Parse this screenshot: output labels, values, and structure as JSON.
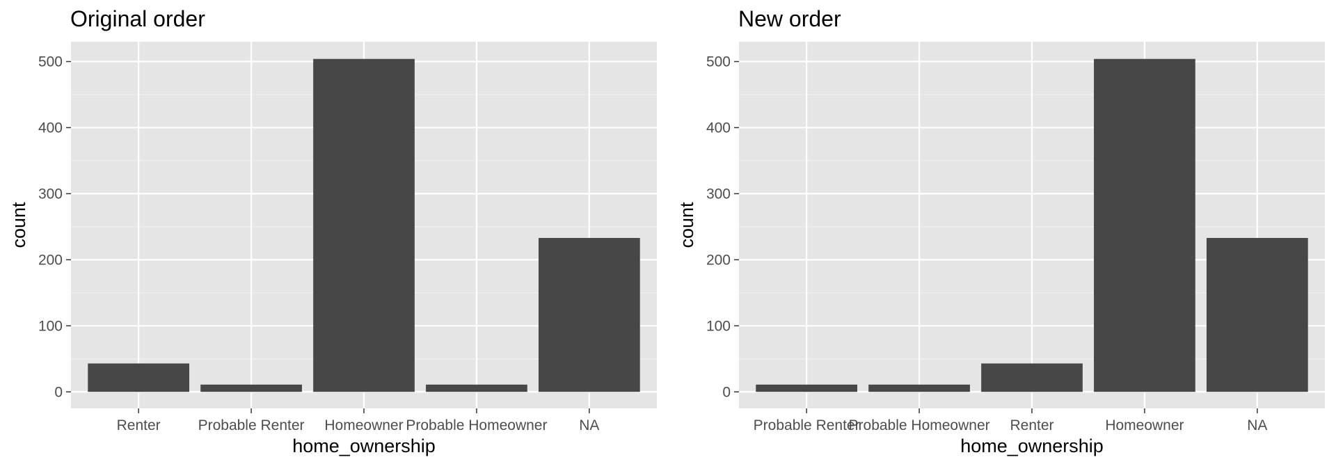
{
  "colors": {
    "panel_bg": "#e5e5e5",
    "grid_major": "#ffffff",
    "grid_minor": "#f0f0f0",
    "bar_fill": "#474747",
    "tick_text": "#4d4d4d",
    "tick_mark": "#333333",
    "title_text": "#000000"
  },
  "chart_data": [
    {
      "type": "bar",
      "title": "Original order",
      "xlabel": "home_ownership",
      "ylabel": "count",
      "categories": [
        "Renter",
        "Probable Renter",
        "Homeowner",
        "Probable Homeowner",
        "NA"
      ],
      "values": [
        43,
        11,
        504,
        11,
        233
      ],
      "yticks": [
        0,
        100,
        200,
        300,
        400,
        500
      ],
      "ylim": [
        -25,
        530
      ],
      "grid": true,
      "legend": "none"
    },
    {
      "type": "bar",
      "title": "New order",
      "xlabel": "home_ownership",
      "ylabel": "count",
      "categories": [
        "Probable Renter",
        "Probable Homeowner",
        "Renter",
        "Homeowner",
        "NA"
      ],
      "values": [
        11,
        11,
        43,
        504,
        233
      ],
      "yticks": [
        0,
        100,
        200,
        300,
        400,
        500
      ],
      "ylim": [
        -25,
        530
      ],
      "grid": true,
      "legend": "none"
    }
  ]
}
